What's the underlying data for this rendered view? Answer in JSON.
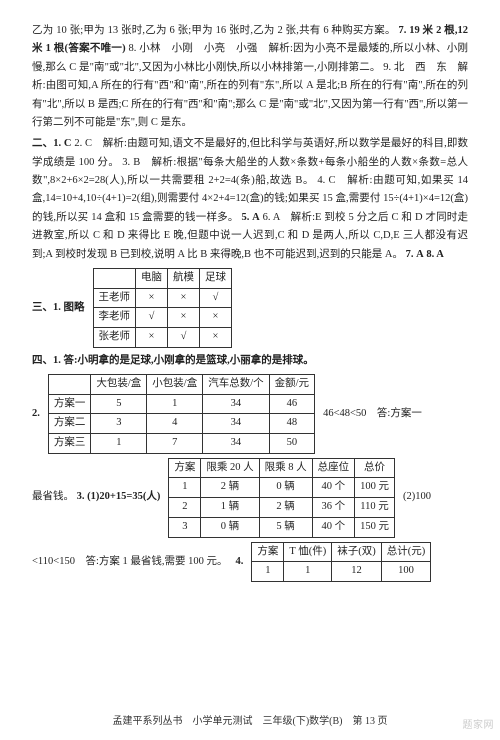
{
  "para1": "乙为 10 张;甲为 13 张时,乙为 6 张;甲为 16 张时,乙为 2 张,共有 6 种购买方案。",
  "q7": "7. 19 米 2 根,12 米 1 根(答案不唯一)",
  "q8": "8. 小林　小刚　小亮　小强　解析:因为小亮不是最矮的,所以小林、小刚慢,那么 C 是\"南\"或\"北\",又因为小林比小刚快,所以小林排第一,小刚排第二。",
  "q9": "9. 北　西　东　解析:由图可知,A 所在的行有\"西\"和\"南\",所在的列有\"东\",所以 A 是北;B 所在的行有\"南\",所在的列有\"北\",所以 B 是西;C 所在的行有\"西\"和\"南\";那么 C 是\"南\"或\"北\",又因为第一行有\"西\",所以第一行第二列不可能是\"东\",则 C 是东。",
  "sec2_label": "二、1. C",
  "sec2_q2": "2. C　解析:由题可知,语文不是最好的,但比科学与英语好,所以数学是最好的科目,即数学成绩是 100 分。",
  "sec2_q3": "3. B　解析:根据\"每条大船坐的人数×条数+每条小船坐的人数×条数=总人数\",8×2+6×2=28(人),所以一共需要租 2+2=4(条)船,故选 B。",
  "sec2_q4": "4. C　解析:由题可知,如果买 14 盒,14=10+4,10÷(4+1)=2(组),则需要付 4×2+4=12(盒)的钱;如果买 15 盒,需要付 15÷(4+1)×4=12(盒)的钱,所以买 14 盒和 15 盒需要的钱一样多。",
  "sec2_q5": "5. A",
  "sec2_q6": "6. A　解析:E 到校 5 分之后 C 和 D 才同时走进教室,所以 C 和 D 来得比 E 晚,但题中说一人迟到,C 和 D 是两人,所以 C,D,E 三人都没有迟到;A 到校时发现 B 已到校,说明 A 比 B 来得晚,B 也不可能迟到,迟到的只能是 A。",
  "sec2_q7": "7. A",
  "sec2_q8": "8. A",
  "sec3_label": "三、1. 图略",
  "table3": {
    "headers": [
      "",
      "电脑",
      "航模",
      "足球"
    ],
    "rows": [
      [
        "王老师",
        "×",
        "×",
        "√"
      ],
      [
        "李老师",
        "√",
        "×",
        "×"
      ],
      [
        "张老师",
        "×",
        "√",
        "×"
      ]
    ]
  },
  "sec4_q1": "四、1. 答:小明拿的是足球,小刚拿的是篮球,小丽拿的是排球。",
  "table4_label": "2.",
  "table4": {
    "headers": [
      "",
      "大包装/盒",
      "小包装/盒",
      "汽车总数/个",
      "金额/元"
    ],
    "rows": [
      [
        "方案一",
        "5",
        "1",
        "34",
        "46"
      ],
      [
        "方案二",
        "3",
        "4",
        "34",
        "48"
      ],
      [
        "方案三",
        "1",
        "7",
        "34",
        "50"
      ]
    ]
  },
  "ans4_2": "46<48<50　答:方案一",
  "sec4_q3a": "最省钱。",
  "sec4_q3b": "3. (1)20+15=35(人)",
  "table5": {
    "headers": [
      "方案",
      "限乘 20 人",
      "限乘 8 人",
      "总座位",
      "总价"
    ],
    "rows": [
      [
        "1",
        "2 辆",
        "0 辆",
        "40 个",
        "100 元"
      ],
      [
        "2",
        "1 辆",
        "2 辆",
        "36 个",
        "110 元"
      ],
      [
        "3",
        "0 辆",
        "5 辆",
        "40 个",
        "150 元"
      ]
    ]
  },
  "ans5": "(2)100",
  "sec4_q3line": "<110<150　答:方案 1 最省钱,需要 100 元。",
  "sec4_q4": "4.",
  "table6": {
    "headers": [
      "方案",
      "T 恤(件)",
      "袜子(双)",
      "总计(元)"
    ],
    "rows": [
      [
        "1",
        "1",
        "12",
        "100"
      ]
    ]
  },
  "footer": "孟建平系列丛书　小学单元测试　三年级(下)数学(B)　第 13 页",
  "watermark": "题家网"
}
